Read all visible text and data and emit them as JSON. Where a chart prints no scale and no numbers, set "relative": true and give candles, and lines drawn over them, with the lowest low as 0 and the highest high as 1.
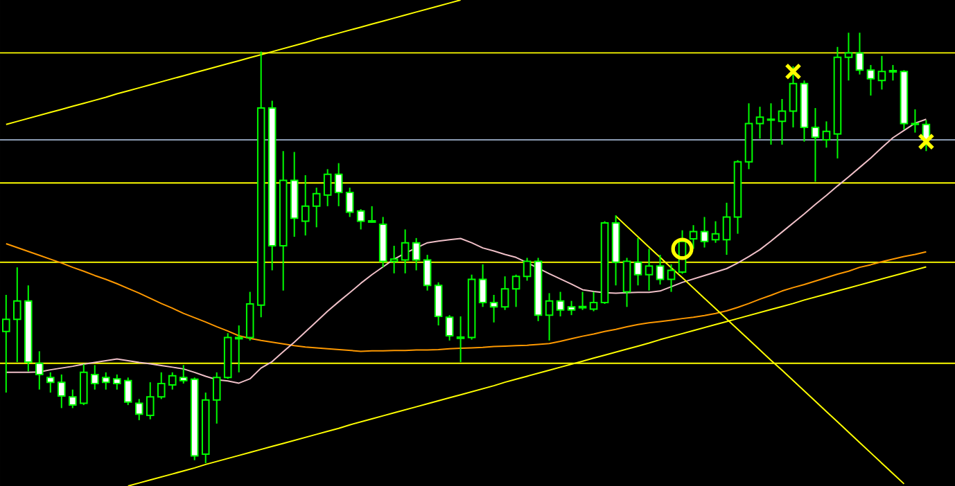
{
  "chart_data": {
    "type": "candlestick",
    "relative": true,
    "color": "#00ff00",
    "categories": [
      null,
      null,
      null,
      null,
      null,
      null,
      null,
      null,
      null,
      null,
      null,
      null,
      null,
      null,
      null,
      null,
      null,
      null,
      null,
      null,
      null,
      null,
      null,
      null,
      null,
      null,
      null,
      null,
      null,
      null,
      null,
      null,
      null,
      null,
      null,
      null,
      null,
      null,
      null,
      null,
      null,
      null,
      null,
      null,
      null,
      null,
      null,
      null,
      null,
      null,
      null,
      null,
      null,
      null,
      null,
      null,
      null,
      null,
      null,
      null,
      null,
      null,
      null,
      null,
      null,
      null,
      null,
      null,
      null,
      null,
      null,
      null,
      null,
      null,
      null,
      null,
      null,
      null,
      null,
      null,
      null,
      null,
      null,
      null
    ],
    "ohlc": [
      [
        0.306,
        0.391,
        0.164,
        0.334
      ],
      [
        0.334,
        0.455,
        0.235,
        0.377
      ],
      [
        0.377,
        0.413,
        0.213,
        0.235
      ],
      [
        0.232,
        0.26,
        0.171,
        0.206
      ],
      [
        0.199,
        0.211,
        0.164,
        0.188
      ],
      [
        0.188,
        0.206,
        0.128,
        0.156
      ],
      [
        0.154,
        0.171,
        0.128,
        0.135
      ],
      [
        0.139,
        0.23,
        0.135,
        0.211
      ],
      [
        0.206,
        0.228,
        0.171,
        0.185
      ],
      [
        0.199,
        0.211,
        0.171,
        0.188
      ],
      [
        0.196,
        0.206,
        0.171,
        0.185
      ],
      [
        0.192,
        0.199,
        0.135,
        0.142
      ],
      [
        0.139,
        0.149,
        0.1,
        0.114
      ],
      [
        0.111,
        0.188,
        0.102,
        0.154
      ],
      [
        0.154,
        0.211,
        0.149,
        0.185
      ],
      [
        0.182,
        0.211,
        0.171,
        0.203
      ],
      [
        0.199,
        0.228,
        0.185,
        0.192
      ],
      [
        0.195,
        0.199,
        0.007,
        0.017
      ],
      [
        0.021,
        0.164,
        0,
        0.147
      ],
      [
        0.147,
        0.211,
        0.092,
        0.199
      ],
      [
        0.199,
        0.302,
        0.196,
        0.292
      ],
      [
        0.289,
        0.32,
        0.211,
        0.292
      ],
      [
        0.292,
        0.398,
        0.285,
        0.37
      ],
      [
        0.367,
        0.956,
        0.339,
        0.825
      ],
      [
        0.825,
        0.842,
        0.448,
        0.505
      ],
      [
        0.505,
        0.725,
        0.401,
        0.657
      ],
      [
        0.657,
        0.723,
        0.526,
        0.569
      ],
      [
        0.562,
        0.669,
        0.529,
        0.597
      ],
      [
        0.597,
        0.64,
        0.548,
        0.626
      ],
      [
        0.623,
        0.683,
        0.597,
        0.671
      ],
      [
        0.671,
        0.697,
        0.597,
        0.629
      ],
      [
        0.629,
        0.64,
        0.572,
        0.583
      ],
      [
        0.586,
        0.59,
        0.543,
        0.562
      ],
      [
        0.563,
        0.597,
        0.559,
        0.56
      ],
      [
        0.555,
        0.572,
        0.455,
        0.469
      ],
      [
        0.469,
        0.505,
        0.441,
        0.474
      ],
      [
        0.472,
        0.543,
        0.441,
        0.512
      ],
      [
        0.512,
        0.523,
        0.448,
        0.472
      ],
      [
        0.472,
        0.484,
        0.401,
        0.413
      ],
      [
        0.413,
        0.42,
        0.32,
        0.341
      ],
      [
        0.339,
        0.344,
        0.285,
        0.296
      ],
      [
        0.29,
        0.341,
        0.235,
        0.293
      ],
      [
        0.292,
        0.438,
        0.287,
        0.427
      ],
      [
        0.427,
        0.462,
        0.363,
        0.373
      ],
      [
        0.373,
        0.391,
        0.327,
        0.363
      ],
      [
        0.363,
        0.434,
        0.356,
        0.405
      ],
      [
        0.405,
        0.438,
        0.363,
        0.434
      ],
      [
        0.434,
        0.477,
        0.424,
        0.469
      ],
      [
        0.469,
        0.477,
        0.33,
        0.344
      ],
      [
        0.344,
        0.395,
        0.285,
        0.377
      ],
      [
        0.377,
        0.398,
        0.341,
        0.356
      ],
      [
        0.363,
        0.377,
        0.344,
        0.356
      ],
      [
        0.361,
        0.398,
        0.356,
        0.364
      ],
      [
        0.358,
        0.398,
        0.353,
        0.373
      ],
      [
        0.373,
        0.562,
        0.37,
        0.558
      ],
      [
        0.558,
        0.576,
        0.413,
        0.467
      ],
      [
        0.398,
        0.477,
        0.363,
        0.469
      ],
      [
        0.467,
        0.523,
        0.413,
        0.438
      ],
      [
        0.438,
        0.498,
        0.401,
        0.458
      ],
      [
        0.458,
        0.484,
        0.415,
        0.427
      ],
      [
        0.427,
        0.462,
        0.398,
        0.448
      ],
      [
        0.444,
        0.541,
        0.44,
        0.515
      ],
      [
        0.521,
        0.553,
        0.498,
        0.538
      ],
      [
        0.538,
        0.572,
        0.501,
        0.515
      ],
      [
        0.519,
        0.562,
        0.512,
        0.533
      ],
      [
        0.519,
        0.605,
        0.484,
        0.572
      ],
      [
        0.572,
        0.704,
        0.533,
        0.7
      ],
      [
        0.7,
        0.836,
        0.683,
        0.789
      ],
      [
        0.789,
        0.828,
        0.754,
        0.804
      ],
      [
        0.797,
        0.836,
        0.74,
        0.799
      ],
      [
        0.794,
        0.846,
        0.74,
        0.818
      ],
      [
        0.818,
        0.922,
        0.78,
        0.882
      ],
      [
        0.882,
        0.889,
        0.747,
        0.78
      ],
      [
        0.78,
        0.825,
        0.654,
        0.757
      ],
      [
        0.751,
        0.794,
        0.733,
        0.771
      ],
      [
        0.765,
        0.967,
        0.708,
        0.943
      ],
      [
        0.943,
        1.0,
        0.889,
        0.953
      ],
      [
        0.953,
        1.0,
        0.903,
        0.913
      ],
      [
        0.913,
        0.925,
        0.854,
        0.893
      ],
      [
        0.889,
        0.946,
        0.868,
        0.91
      ],
      [
        0.909,
        0.925,
        0.889,
        0.912
      ],
      [
        0.91,
        0.913,
        0.775,
        0.789
      ],
      [
        0.789,
        0.822,
        0.768,
        0.787
      ],
      [
        0.787,
        0.797,
        0.725,
        0.751
      ]
    ],
    "ref_lines": [
      {
        "axis": "y",
        "value": 0.953,
        "color": "#ffff00"
      },
      {
        "axis": "y",
        "value": 0.751,
        "color": "#8c9cb4"
      },
      {
        "axis": "y",
        "value": 0.651,
        "color": "#ffff00"
      },
      {
        "axis": "y",
        "value": 0.467,
        "color": "#ffff00"
      },
      {
        "axis": "y",
        "value": 0.232,
        "color": "#ffff00"
      }
    ],
    "series": [
      {
        "type": "line",
        "color": "#ff9900",
        "values": [
          0.51,
          0.501,
          0.492,
          0.483,
          0.474,
          0.465,
          0.455,
          0.446,
          0.436,
          0.427,
          0.417,
          0.406,
          0.395,
          0.383,
          0.371,
          0.36,
          0.348,
          0.338,
          0.328,
          0.317,
          0.307,
          0.296,
          0.29,
          0.285,
          0.281,
          0.277,
          0.273,
          0.27,
          0.268,
          0.266,
          0.264,
          0.262,
          0.26,
          0.261,
          0.261,
          0.262,
          0.262,
          0.263,
          0.263,
          0.264,
          0.266,
          0.267,
          0.268,
          0.269,
          0.271,
          0.272,
          0.273,
          0.274,
          0.276,
          0.278,
          0.283,
          0.289,
          0.295,
          0.3,
          0.306,
          0.311,
          0.317,
          0.322,
          0.326,
          0.329,
          0.332,
          0.336,
          0.339,
          0.343,
          0.348,
          0.354,
          0.362,
          0.371,
          0.381,
          0.39,
          0.4,
          0.408,
          0.415,
          0.423,
          0.431,
          0.439,
          0.446,
          0.455,
          0.461,
          0.468,
          0.474,
          0.48,
          0.485,
          0.491
        ]
      },
      {
        "type": "line",
        "color": "#f0c0c8",
        "values": [
          0.211,
          0.211,
          0.211,
          0.212,
          0.217,
          0.221,
          0.225,
          0.23,
          0.234,
          0.238,
          0.242,
          0.238,
          0.234,
          0.231,
          0.227,
          0.223,
          0.219,
          0.211,
          0.202,
          0.194,
          0.191,
          0.186,
          0.196,
          0.221,
          0.236,
          0.259,
          0.281,
          0.305,
          0.329,
          0.353,
          0.375,
          0.396,
          0.418,
          0.438,
          0.456,
          0.474,
          0.488,
          0.5,
          0.512,
          0.516,
          0.519,
          0.522,
          0.512,
          0.5,
          0.493,
          0.485,
          0.478,
          0.466,
          0.453,
          0.44,
          0.428,
          0.416,
          0.403,
          0.399,
          0.396,
          0.395,
          0.396,
          0.397,
          0.397,
          0.4,
          0.41,
          0.42,
          0.428,
          0.436,
          0.444,
          0.452,
          0.465,
          0.48,
          0.496,
          0.516,
          0.537,
          0.558,
          0.579,
          0.601,
          0.622,
          0.644,
          0.665,
          0.687,
          0.709,
          0.733,
          0.756,
          0.773,
          0.79,
          0.799
        ]
      },
      {
        "type": "line",
        "color": "#ffff00",
        "values": [
          0.787,
          0.794,
          0.801,
          0.808,
          0.815,
          0.822,
          0.829,
          0.836,
          0.843,
          0.85,
          0.858,
          0.865,
          0.872,
          0.879,
          0.886,
          0.893,
          0.9,
          0.907,
          0.914,
          0.921,
          0.928,
          0.935,
          0.942,
          0.949,
          0.956,
          0.963,
          0.97,
          0.977,
          0.985,
          0.992,
          0.999,
          1.006,
          1.013,
          1.02,
          1.027,
          1.034,
          1.041,
          1.048,
          1.055,
          1.062,
          1.069,
          1.076,
          null,
          null,
          null,
          null,
          null,
          null,
          null,
          null,
          null,
          null,
          null,
          null,
          null,
          null,
          null,
          null,
          null,
          null,
          null,
          null,
          null,
          null,
          null,
          null,
          null,
          null,
          null,
          null,
          null,
          null,
          null,
          null,
          null,
          null,
          null,
          null,
          null,
          null,
          null,
          null,
          null,
          null
        ]
      },
      {
        "type": "line",
        "color": "#ffff00",
        "values": [
          null,
          null,
          null,
          null,
          null,
          null,
          null,
          null,
          null,
          null,
          null,
          -0.053,
          -0.046,
          -0.039,
          -0.032,
          -0.025,
          -0.018,
          -0.011,
          -0.003,
          0.004,
          0.011,
          0.018,
          0.025,
          0.032,
          0.039,
          0.046,
          0.053,
          0.06,
          0.067,
          0.074,
          0.081,
          0.089,
          0.096,
          0.103,
          0.11,
          0.117,
          0.124,
          0.131,
          0.138,
          0.145,
          0.152,
          0.159,
          0.166,
          0.173,
          0.18,
          0.188,
          0.195,
          0.202,
          0.209,
          0.216,
          0.223,
          0.23,
          0.237,
          0.244,
          0.251,
          0.258,
          0.265,
          0.272,
          0.279,
          0.287,
          0.294,
          0.301,
          0.308,
          0.315,
          0.322,
          0.329,
          0.336,
          0.343,
          0.35,
          0.357,
          0.364,
          0.371,
          0.379,
          0.386,
          0.393,
          0.4,
          0.407,
          0.414,
          0.421,
          0.428,
          0.435,
          0.442,
          0.449,
          0.456
        ]
      },
      {
        "type": "line",
        "color": "#ffff00",
        "values": [
          null,
          null,
          null,
          null,
          null,
          null,
          null,
          null,
          null,
          null,
          null,
          null,
          null,
          null,
          null,
          null,
          null,
          null,
          null,
          null,
          null,
          null,
          null,
          null,
          null,
          null,
          null,
          null,
          null,
          null,
          null,
          null,
          null,
          null,
          null,
          null,
          null,
          null,
          null,
          null,
          null,
          null,
          null,
          null,
          null,
          null,
          null,
          null,
          null,
          null,
          null,
          null,
          null,
          null,
          null,
          0.574,
          0.55,
          0.526,
          0.502,
          0.478,
          0.454,
          0.431,
          0.407,
          0.383,
          0.359,
          0.335,
          0.311,
          0.287,
          0.263,
          0.239,
          0.216,
          0.192,
          0.168,
          0.144,
          0.12,
          0.096,
          0.072,
          0.048,
          0.024,
          0.0,
          -0.024,
          -0.048,
          null,
          null
        ]
      },
      {
        "type": "scatter",
        "marker": "cross",
        "color": "#ffff00",
        "values": [
          null,
          null,
          null,
          null,
          null,
          null,
          null,
          null,
          null,
          null,
          null,
          null,
          null,
          null,
          null,
          null,
          null,
          null,
          null,
          null,
          null,
          null,
          null,
          null,
          null,
          null,
          null,
          null,
          null,
          null,
          null,
          null,
          null,
          null,
          null,
          null,
          null,
          null,
          null,
          null,
          null,
          null,
          null,
          null,
          null,
          null,
          null,
          null,
          null,
          null,
          null,
          null,
          null,
          null,
          null,
          null,
          null,
          null,
          null,
          null,
          null,
          null,
          null,
          null,
          null,
          null,
          null,
          null,
          null,
          null,
          null,
          0.91,
          null,
          null,
          null,
          null,
          null,
          null,
          null,
          null,
          null,
          null,
          null,
          0.747
        ]
      },
      {
        "type": "scatter",
        "marker": "circle",
        "color": "#ffff00",
        "values": [
          null,
          null,
          null,
          null,
          null,
          null,
          null,
          null,
          null,
          null,
          null,
          null,
          null,
          null,
          null,
          null,
          null,
          null,
          null,
          null,
          null,
          null,
          null,
          null,
          null,
          null,
          null,
          null,
          null,
          null,
          null,
          null,
          null,
          null,
          null,
          null,
          null,
          null,
          null,
          null,
          null,
          null,
          null,
          null,
          null,
          null,
          null,
          null,
          null,
          null,
          null,
          null,
          null,
          null,
          null,
          null,
          null,
          null,
          null,
          null,
          null,
          0.498,
          null,
          null,
          null,
          null,
          null,
          null,
          null,
          null,
          null,
          null,
          null,
          null,
          null,
          null,
          null,
          null,
          null,
          null,
          null,
          null,
          null,
          null
        ]
      }
    ]
  }
}
